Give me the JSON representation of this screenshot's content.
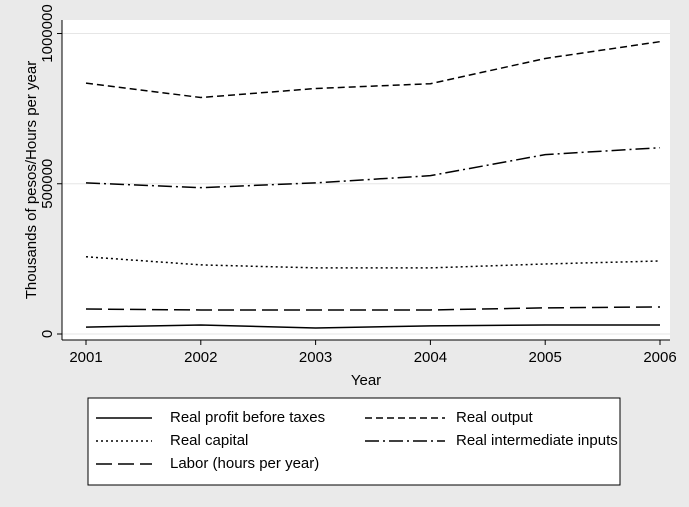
{
  "chart_data": {
    "type": "line",
    "x": [
      2001,
      2002,
      2003,
      2004,
      2005,
      2006
    ],
    "xlim": [
      2001,
      2006
    ],
    "xticks": [
      2001,
      2002,
      2003,
      2004,
      2005,
      2006
    ],
    "ylim": [
      -20000,
      1045000
    ],
    "yticks": [
      0,
      500000,
      1000000
    ],
    "xlabel": "Year",
    "ylabel": "Thousands of pesos/Hours per year",
    "grid": true,
    "series": [
      {
        "name": "Real profit before taxes",
        "color": "#000000",
        "dash": "none",
        "values": [
          23000,
          30000,
          20000,
          27000,
          30000,
          30000
        ]
      },
      {
        "name": "Real output",
        "color": "#000000",
        "dash": "7,4",
        "values": [
          835000,
          787000,
          817000,
          833000,
          917000,
          973000
        ]
      },
      {
        "name": "Real capital",
        "color": "#000000",
        "dash": "2,3",
        "values": [
          257000,
          230000,
          220000,
          220000,
          233000,
          243000
        ]
      },
      {
        "name": "Real intermediate inputs",
        "color": "#000000",
        "dash": "14,4,2,4",
        "values": [
          503000,
          487000,
          503000,
          527000,
          597000,
          620000
        ]
      },
      {
        "name": "Labor (hours per year)",
        "color": "#000000",
        "dash": "16,6",
        "values": [
          83000,
          80000,
          80000,
          80000,
          87000,
          90000
        ]
      }
    ]
  }
}
